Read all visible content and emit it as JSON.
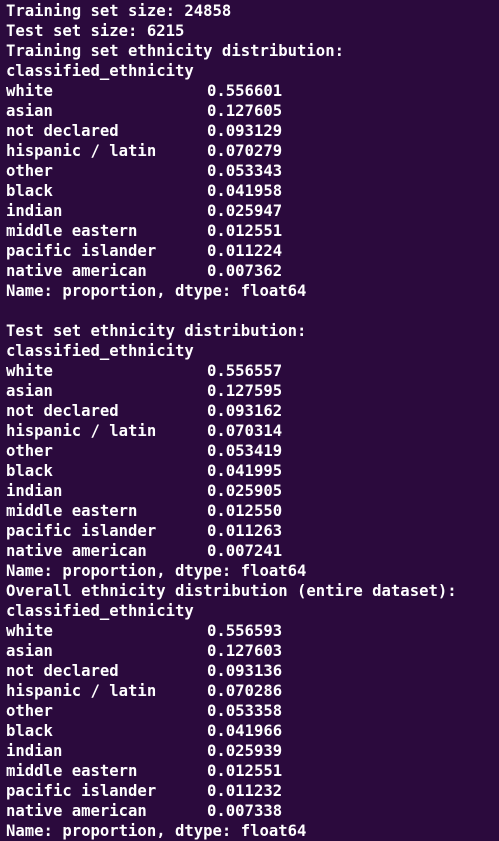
{
  "header": {
    "training_size": "Training set size: 24858",
    "test_size": "Test set size: 6215"
  },
  "sections": [
    {
      "title": "Training set ethnicity distribution:",
      "index_name": "classified_ethnicity",
      "rows": [
        {
          "label": "white",
          "value": "0.556601"
        },
        {
          "label": "asian",
          "value": "0.127605"
        },
        {
          "label": "not declared",
          "value": "0.093129"
        },
        {
          "label": "hispanic / latin",
          "value": "0.070279"
        },
        {
          "label": "other",
          "value": "0.053343"
        },
        {
          "label": "black",
          "value": "0.041958"
        },
        {
          "label": "indian",
          "value": "0.025947"
        },
        {
          "label": "middle eastern",
          "value": "0.012551"
        },
        {
          "label": "pacific islander",
          "value": "0.011224"
        },
        {
          "label": "native american",
          "value": "0.007362"
        }
      ],
      "footer": "Name: proportion, dtype: float64"
    },
    {
      "title": "Test set ethnicity distribution:",
      "index_name": "classified_ethnicity",
      "rows": [
        {
          "label": "white",
          "value": "0.556557"
        },
        {
          "label": "asian",
          "value": "0.127595"
        },
        {
          "label": "not declared",
          "value": "0.093162"
        },
        {
          "label": "hispanic / latin",
          "value": "0.070314"
        },
        {
          "label": "other",
          "value": "0.053419"
        },
        {
          "label": "black",
          "value": "0.041995"
        },
        {
          "label": "indian",
          "value": "0.025905"
        },
        {
          "label": "middle eastern",
          "value": "0.012550"
        },
        {
          "label": "pacific islander",
          "value": "0.011263"
        },
        {
          "label": "native american",
          "value": "0.007241"
        }
      ],
      "footer": "Name: proportion, dtype: float64"
    },
    {
      "title": "Overall ethnicity distribution (entire dataset):",
      "index_name": "classified_ethnicity",
      "rows": [
        {
          "label": "white",
          "value": "0.556593"
        },
        {
          "label": "asian",
          "value": "0.127603"
        },
        {
          "label": "not declared",
          "value": "0.093136"
        },
        {
          "label": "hispanic / latin",
          "value": "0.070286"
        },
        {
          "label": "other",
          "value": "0.053358"
        },
        {
          "label": "black",
          "value": "0.041966"
        },
        {
          "label": "indian",
          "value": "0.025939"
        },
        {
          "label": "middle eastern",
          "value": "0.012551"
        },
        {
          "label": "pacific islander",
          "value": "0.011232"
        },
        {
          "label": "native american",
          "value": "0.007338"
        }
      ],
      "footer": "Name: proportion, dtype: float64"
    }
  ],
  "colors": {
    "background": "#2b0a3d",
    "text": "#ffffff"
  }
}
